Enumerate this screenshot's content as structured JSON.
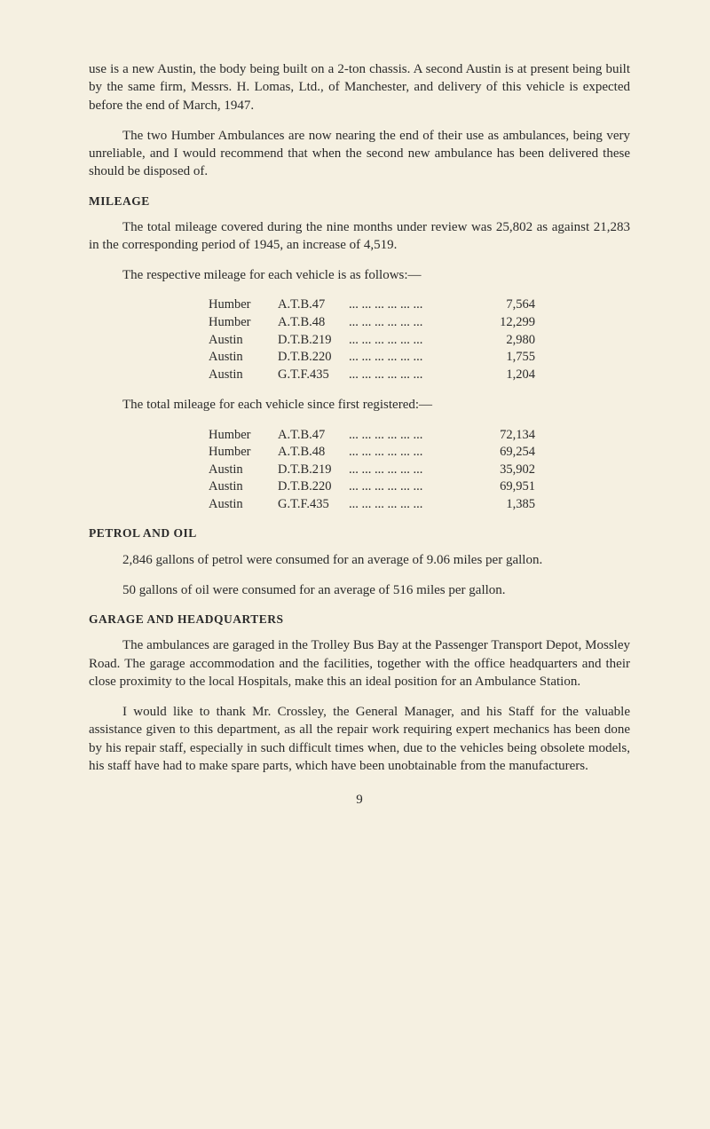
{
  "para1": "use is a new Austin, the body being built on a 2-ton chassis. A second Austin is at present being built by the same firm, Messrs. H. Lomas, Ltd., of Manchester, and delivery of this vehicle is expected before the end of March, 1947.",
  "para2": "The two Humber Ambulances are now nearing the end of their use as ambulances, being very unreliable, and I would recommend that when the second new ambulance has been delivered these should be disposed of.",
  "heading_mileage": "MILEAGE",
  "para3": "The total mileage covered during the nine months under review was 25,802 as against 21,283 in the corresponding period of 1945, an increase of 4,519.",
  "para4": "The respective mileage for each vehicle is as follows:—",
  "mileage_table1": [
    {
      "vehicle": "Humber",
      "model": "A.T.B.47",
      "value": "7,564"
    },
    {
      "vehicle": "Humber",
      "model": "A.T.B.48",
      "value": "12,299"
    },
    {
      "vehicle": "Austin",
      "model": "D.T.B.219",
      "value": "2,980"
    },
    {
      "vehicle": "Austin",
      "model": "D.T.B.220",
      "value": "1,755"
    },
    {
      "vehicle": "Austin",
      "model": "G.T.F.435",
      "value": "1,204"
    }
  ],
  "para5": "The total mileage for each vehicle since first registered:—",
  "mileage_table2": [
    {
      "vehicle": "Humber",
      "model": "A.T.B.47",
      "value": "72,134"
    },
    {
      "vehicle": "Humber",
      "model": "A.T.B.48",
      "value": "69,254"
    },
    {
      "vehicle": "Austin",
      "model": "D.T.B.219",
      "value": "35,902"
    },
    {
      "vehicle": "Austin",
      "model": "D.T.B.220",
      "value": "69,951"
    },
    {
      "vehicle": "Austin",
      "model": "G.T.F.435",
      "value": "1,385"
    }
  ],
  "heading_petrol": "PETROL AND OIL",
  "para6": "2,846 gallons of petrol were consumed for an average of 9.06 miles per gallon.",
  "para7": "50 gallons of oil were consumed for an average of 516 miles per gallon.",
  "heading_garage": "GARAGE AND HEADQUARTERS",
  "para8": "The ambulances are garaged in the Trolley Bus Bay at the Passenger Transport Depot, Mossley Road. The garage accommodation and the facilities, together with the office headquarters and their close proximity to the local Hospitals, make this an ideal position for an Ambulance Station.",
  "para9": "I would like to thank Mr. Crossley, the General Manager, and his Staff for the valuable assistance given to this department, as all the repair work requiring expert mechanics has been done by his repair staff, especially in such difficult times when, due to the vehicles being obsolete models, his staff have had to make spare parts, which have been unobtainable from the manufacturers.",
  "page_number": "9",
  "dots": "...  ...  ...  ...  ...  ..."
}
